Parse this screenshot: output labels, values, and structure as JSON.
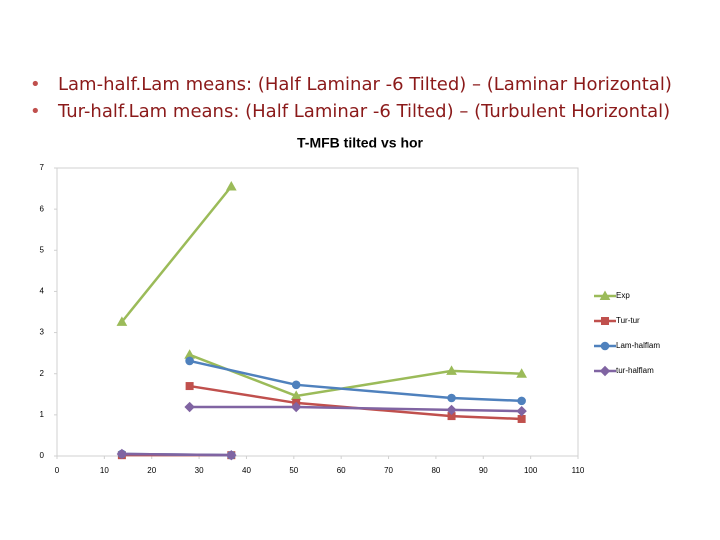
{
  "bullets": [
    "Lam-half.Lam means: (Half Laminar -6 Tilted) – (Laminar Horizontal)",
    "Tur-half.Lam means: (Half Laminar -6 Tilted) – (Turbulent Horizontal)"
  ],
  "chart_data": {
    "type": "line",
    "title": "T-MFB tilted vs hor",
    "x": [
      13.7,
      36.8,
      null,
      28,
      50.5,
      83.3,
      98.1
    ],
    "series": [
      {
        "name": "Exp",
        "color": "#9bbb59",
        "marker": "triangle",
        "values": [
          3.26,
          6.55,
          null,
          2.46,
          1.46,
          2.07,
          2.0
        ]
      },
      {
        "name": "Tur-tur",
        "color": "#c0504d",
        "marker": "square",
        "values": [
          0.02,
          0.02,
          null,
          1.7,
          1.29,
          0.97,
          0.9
        ]
      },
      {
        "name": "Lam-halflam",
        "color": "#4f81bd",
        "marker": "circle",
        "values": [
          0.05,
          0.02,
          null,
          2.31,
          1.73,
          1.41,
          1.34
        ]
      },
      {
        "name": "tur-halflam",
        "color": "#8064a2",
        "marker": "diamond",
        "values": [
          0.05,
          0.02,
          null,
          1.19,
          1.19,
          1.12,
          1.09
        ]
      }
    ],
    "xlim": [
      0,
      110
    ],
    "xticks": [
      0,
      10,
      20,
      30,
      40,
      50,
      60,
      70,
      80,
      90,
      100,
      110
    ],
    "ylim": [
      0,
      7
    ],
    "yticks": [
      0,
      1,
      2,
      3,
      4,
      5,
      6,
      7
    ],
    "grid": false,
    "legend": "right"
  }
}
